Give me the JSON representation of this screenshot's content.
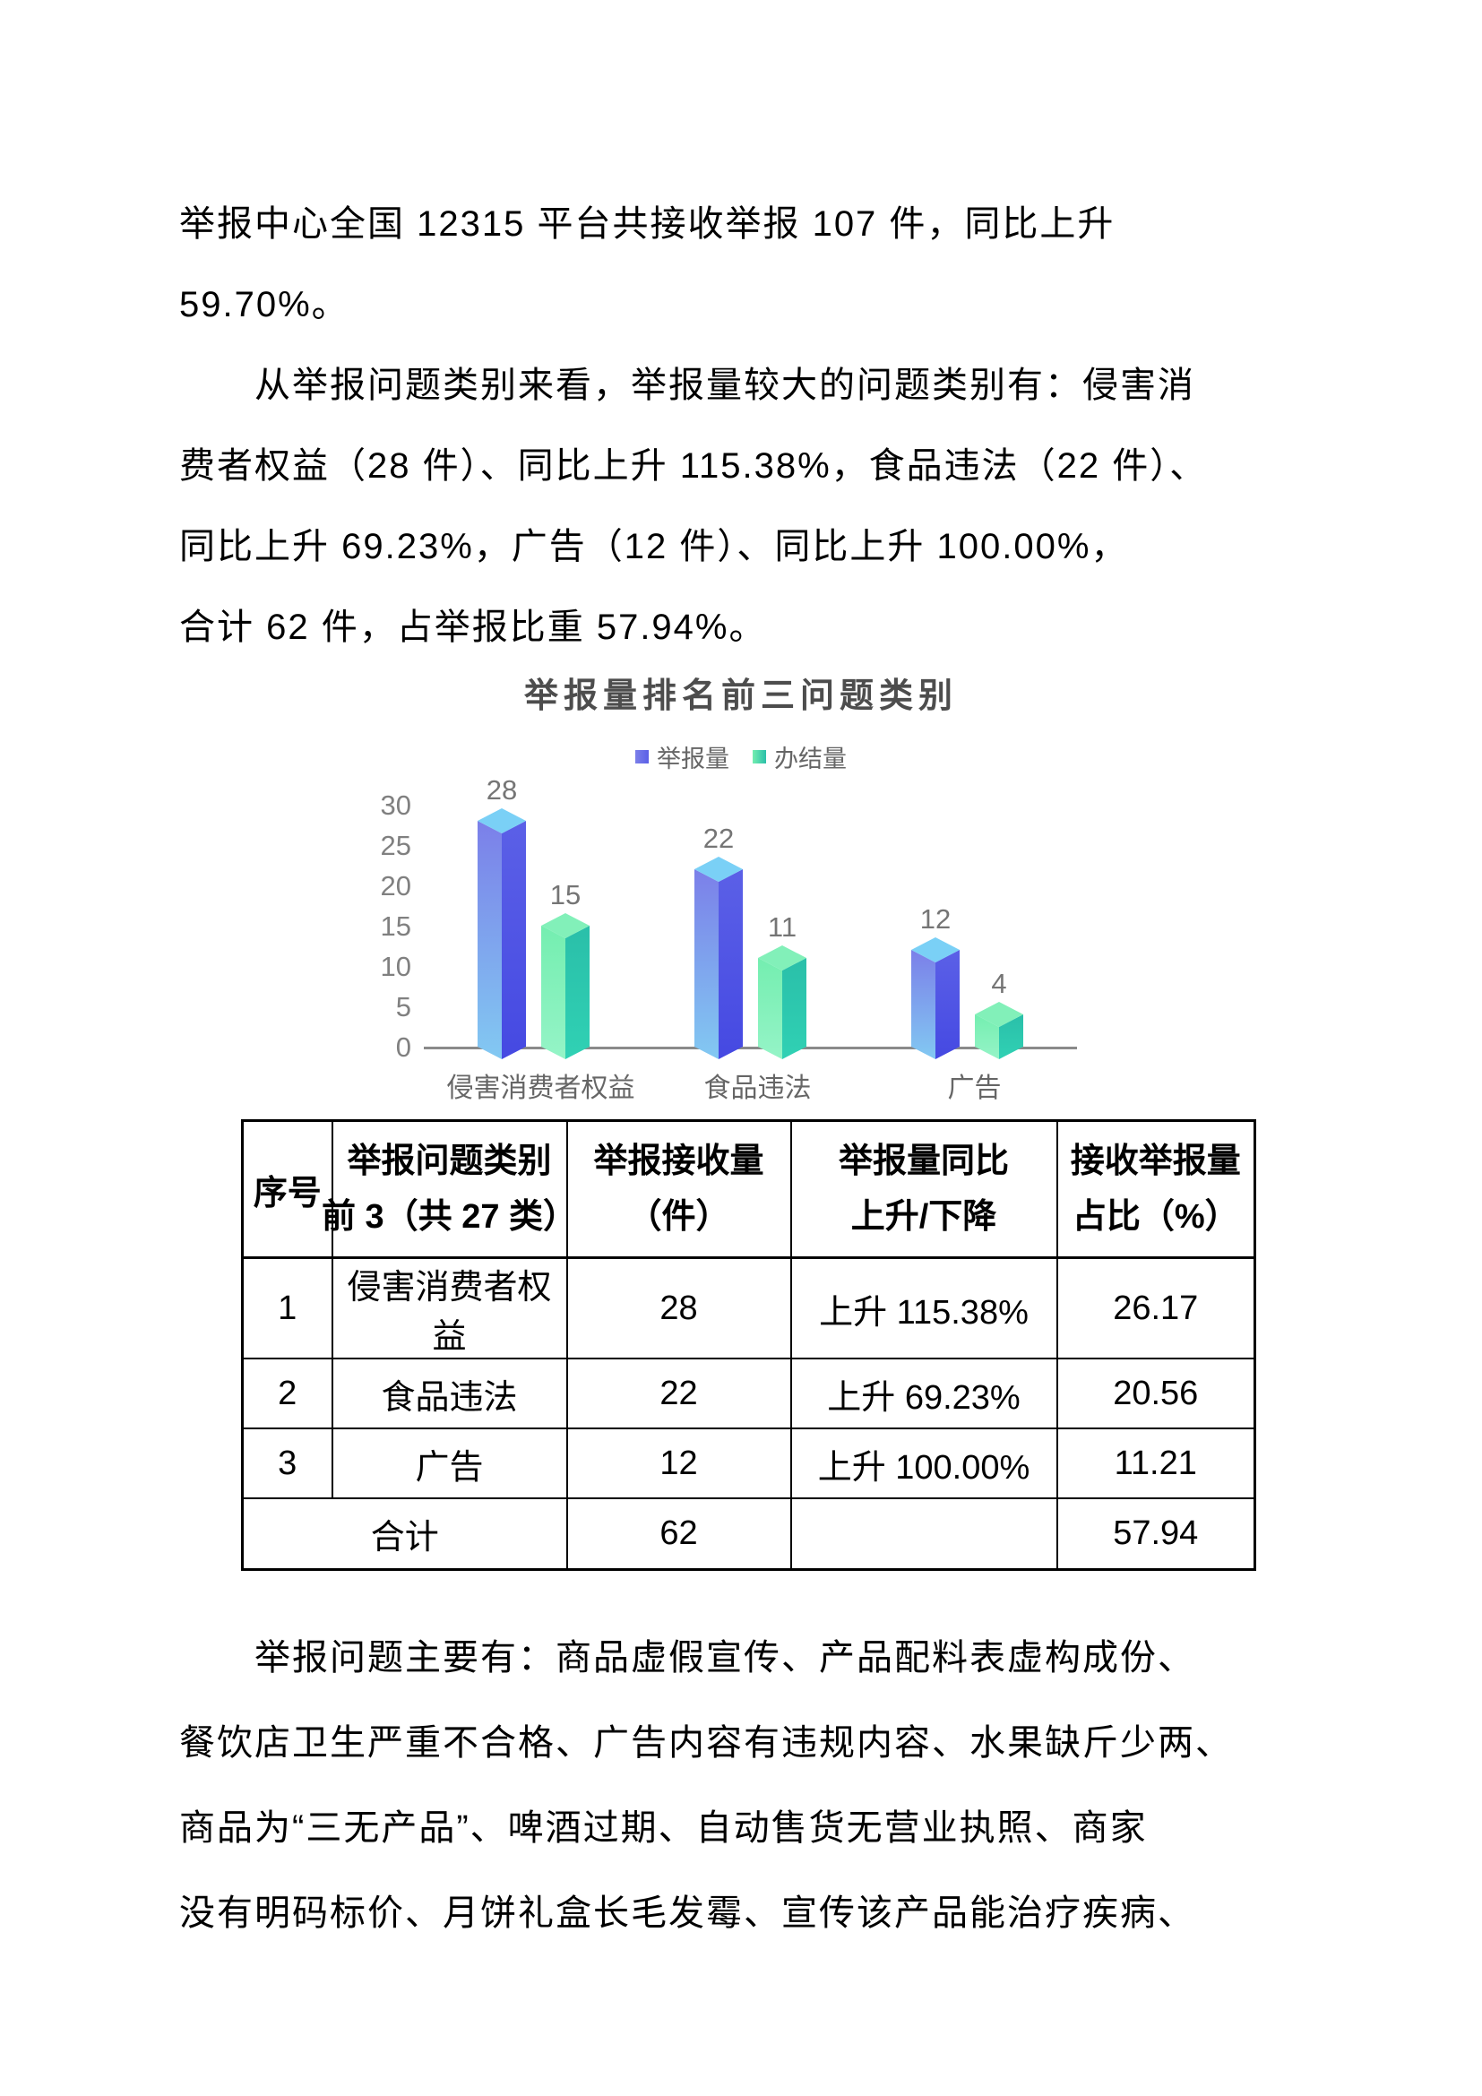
{
  "page": {
    "background": "#ffffff"
  },
  "paragraphs": {
    "p1": {
      "indent_first": false,
      "lines": [
        "举报中心全国 12315 平台共接收举报 107 件，同比上升",
        "59.70%。"
      ]
    },
    "p2": {
      "indent_first": true,
      "lines": [
        "从举报问题类别来看，举报量较大的问题类别有：侵害消",
        "费者权益（28 件）、同比上升 115.38%，食品违法（22 件）、",
        "同比上升 69.23%，广告（12 件）、同比上升 100.00%，",
        "合计 62 件，占举报比重 57.94%。"
      ]
    },
    "p3": {
      "indent_first": true,
      "lines": [
        "举报问题主要有：商品虚假宣传、产品配料表虚构成份、",
        "餐饮店卫生严重不合格、广告内容有违规内容、水果缺斤少两、",
        "商品为“三无产品”、啤酒过期、自动售货无营业执照、商家",
        "没有明码标价、月饼礼盒长毛发霉、宣传该产品能治疗疾病、"
      ]
    }
  },
  "chart_data": {
    "type": "bar",
    "style": "3d",
    "title": "举报量排名前三问题类别",
    "categories": [
      "侵害消费者权益",
      "食品违法",
      "广告"
    ],
    "series": [
      {
        "name": "举报量",
        "values": [
          28,
          22,
          12
        ]
      },
      {
        "name": "办结量",
        "values": [
          15,
          11,
          4
        ]
      }
    ],
    "ylim": [
      0,
      30
    ],
    "yticks": [
      0,
      5,
      10,
      15,
      20,
      25,
      30
    ],
    "legend_position": "top",
    "grid": false,
    "data_labels": true,
    "colors": {
      "举报量": {
        "top": "#7ad0f6",
        "left_top": "#7b7fe9",
        "left_bottom": "#82c9f2",
        "right_top": "#5b60e7",
        "right_bottom": "#4549e2"
      },
      "办结量": {
        "top": "#82f0b9",
        "left_top": "#74eeb0",
        "left_bottom": "#95f4c7",
        "right_top": "#2abfa9",
        "right_bottom": "#30d1b4"
      },
      "axis": "#8a8a8a",
      "tick_label": "#808080",
      "data_label": "#757575",
      "category_label": "#666666",
      "title": "#4d4d4d",
      "legend_text": "#666666"
    }
  },
  "table": {
    "headers": [
      {
        "lines": [
          "序号"
        ]
      },
      {
        "lines": [
          "举报问题类别",
          "前 3（共 27 类）"
        ]
      },
      {
        "lines": [
          "举报接收量",
          "（件）"
        ]
      },
      {
        "lines": [
          "举报量同比",
          "上升/下降"
        ]
      },
      {
        "lines": [
          "接收举报量",
          "占比（%）"
        ]
      }
    ],
    "rows": [
      {
        "cells": [
          "1",
          "侵害消费者权益",
          "28",
          "上升 115.38%",
          "26.17"
        ]
      },
      {
        "cells": [
          "2",
          "食品违法",
          "22",
          "上升 69.23%",
          "20.56"
        ]
      },
      {
        "cells": [
          "3",
          "广告",
          "12",
          "上升 100.00%",
          "11.21"
        ]
      }
    ],
    "total_row": {
      "label": "合计",
      "cells": [
        "62",
        "",
        "57.94"
      ]
    }
  }
}
